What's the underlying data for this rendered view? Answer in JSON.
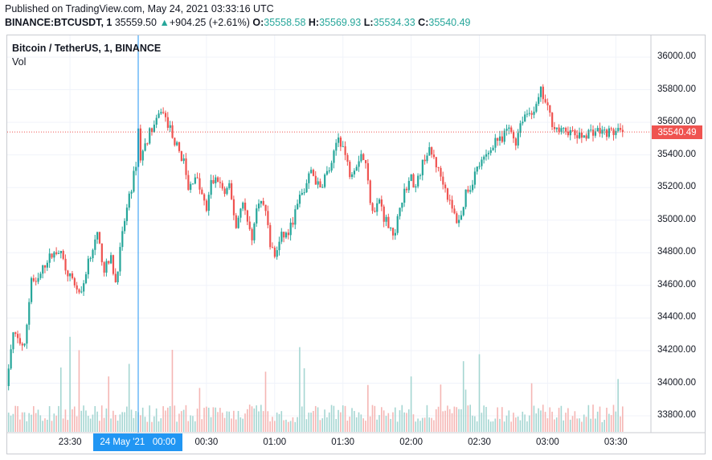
{
  "header": {
    "published": "Published on TradingView.com, May 24, 2021 03:33:16 UTC",
    "symbol": "BINANCE:BTCUSDT, 1",
    "last": "35559.50",
    "change_arrow": "▲",
    "change": "+904.25 (+2.61%)",
    "o_label": "O:",
    "o_value": "35558.58",
    "h_label": "H:",
    "h_value": "35569.93",
    "l_label": "L:",
    "l_value": "35534.33",
    "c_label": "C:",
    "c_value": "35540.49"
  },
  "legend": {
    "title": "Bitcoin / TetherUS, 1, BINANCE",
    "volume_label": "Vol"
  },
  "colors": {
    "up": "#26a69a",
    "down": "#ef5350",
    "vol_up": "#a5d6d2",
    "vol_down": "#f5b6b4",
    "crosshair": "#2196f3"
  },
  "price_tag": "35540.49",
  "highlight_time": "24 May '21   00:00",
  "chart_data": {
    "type": "candlestick",
    "title": "Bitcoin / TetherUS, 1, BINANCE",
    "ylim": [
      33700,
      36120
    ],
    "y_ticks": [
      "36000.00",
      "35800.00",
      "35600.00",
      "35400.00",
      "35200.00",
      "35000.00",
      "34800.00",
      "34600.00",
      "34400.00",
      "34200.00",
      "34000.00",
      "33800.00"
    ],
    "y_tick_values": [
      36000,
      35800,
      35600,
      35400,
      35200,
      35000,
      34800,
      34600,
      34400,
      34200,
      34000,
      33800
    ],
    "x_ticks": [
      "23:30",
      "00:30",
      "01:00",
      "01:30",
      "02:00",
      "02:30",
      "03:00",
      "03:30"
    ],
    "x_tick_minutes": [
      -30,
      30,
      60,
      90,
      120,
      150,
      180,
      210
    ],
    "highlighted_minute": 0,
    "last_close": 35540.49,
    "grid": true,
    "close_path_minutes": [
      -59,
      -55,
      -50,
      -47,
      -45,
      -42,
      -40,
      -35,
      -30,
      -25,
      -22,
      -18,
      -15,
      -12,
      -10,
      -6,
      -3,
      -1,
      0,
      1,
      5,
      8,
      10,
      14,
      17,
      20,
      22,
      25,
      28,
      30,
      32,
      35,
      38,
      40,
      43,
      46,
      48,
      50,
      53,
      56,
      58,
      60,
      63,
      66,
      68,
      71,
      73,
      76,
      78,
      80,
      82,
      85,
      87,
      88,
      90,
      93,
      96,
      98,
      100,
      102,
      104,
      106,
      108,
      111,
      113,
      115,
      118,
      120,
      122,
      124,
      126,
      128,
      130,
      132,
      134,
      136,
      138,
      140,
      142,
      144,
      146,
      148,
      150,
      152,
      154,
      157,
      160,
      162,
      164,
      166,
      168,
      170,
      172,
      175,
      177,
      180,
      182,
      184,
      186,
      188,
      190,
      192,
      194,
      196,
      198,
      200,
      202,
      204,
      206,
      208,
      210
    ],
    "close_path_values": [
      33900,
      34300,
      34220,
      34650,
      34600,
      34700,
      34760,
      34820,
      34650,
      34540,
      34760,
      34900,
      34700,
      34760,
      34620,
      35000,
      35200,
      35350,
      35560,
      35380,
      35540,
      35600,
      35680,
      35560,
      35450,
      35360,
      35180,
      35280,
      35150,
      35060,
      35230,
      35250,
      35160,
      35200,
      34960,
      35130,
      34980,
      34900,
      35130,
      35060,
      34850,
      34780,
      34900,
      34920,
      35000,
      35140,
      35180,
      35310,
      35240,
      35190,
      35270,
      35330,
      35470,
      35510,
      35450,
      35290,
      35350,
      35410,
      35340,
      35120,
      35050,
      35130,
      35020,
      34960,
      34900,
      35100,
      35210,
      35260,
      35200,
      35300,
      35390,
      35420,
      35380,
      35300,
      35240,
      35150,
      35060,
      35000,
      35020,
      35180,
      35200,
      35290,
      35340,
      35370,
      35410,
      35500,
      35480,
      35560,
      35540,
      35480,
      35600,
      35650,
      35660,
      35690,
      35790,
      35680,
      35600,
      35560,
      35540,
      35550,
      35540,
      35520,
      35510,
      35520,
      35540,
      35545,
      35550,
      35540,
      35540,
      35540,
      35540,
      35540,
      35540
    ]
  }
}
